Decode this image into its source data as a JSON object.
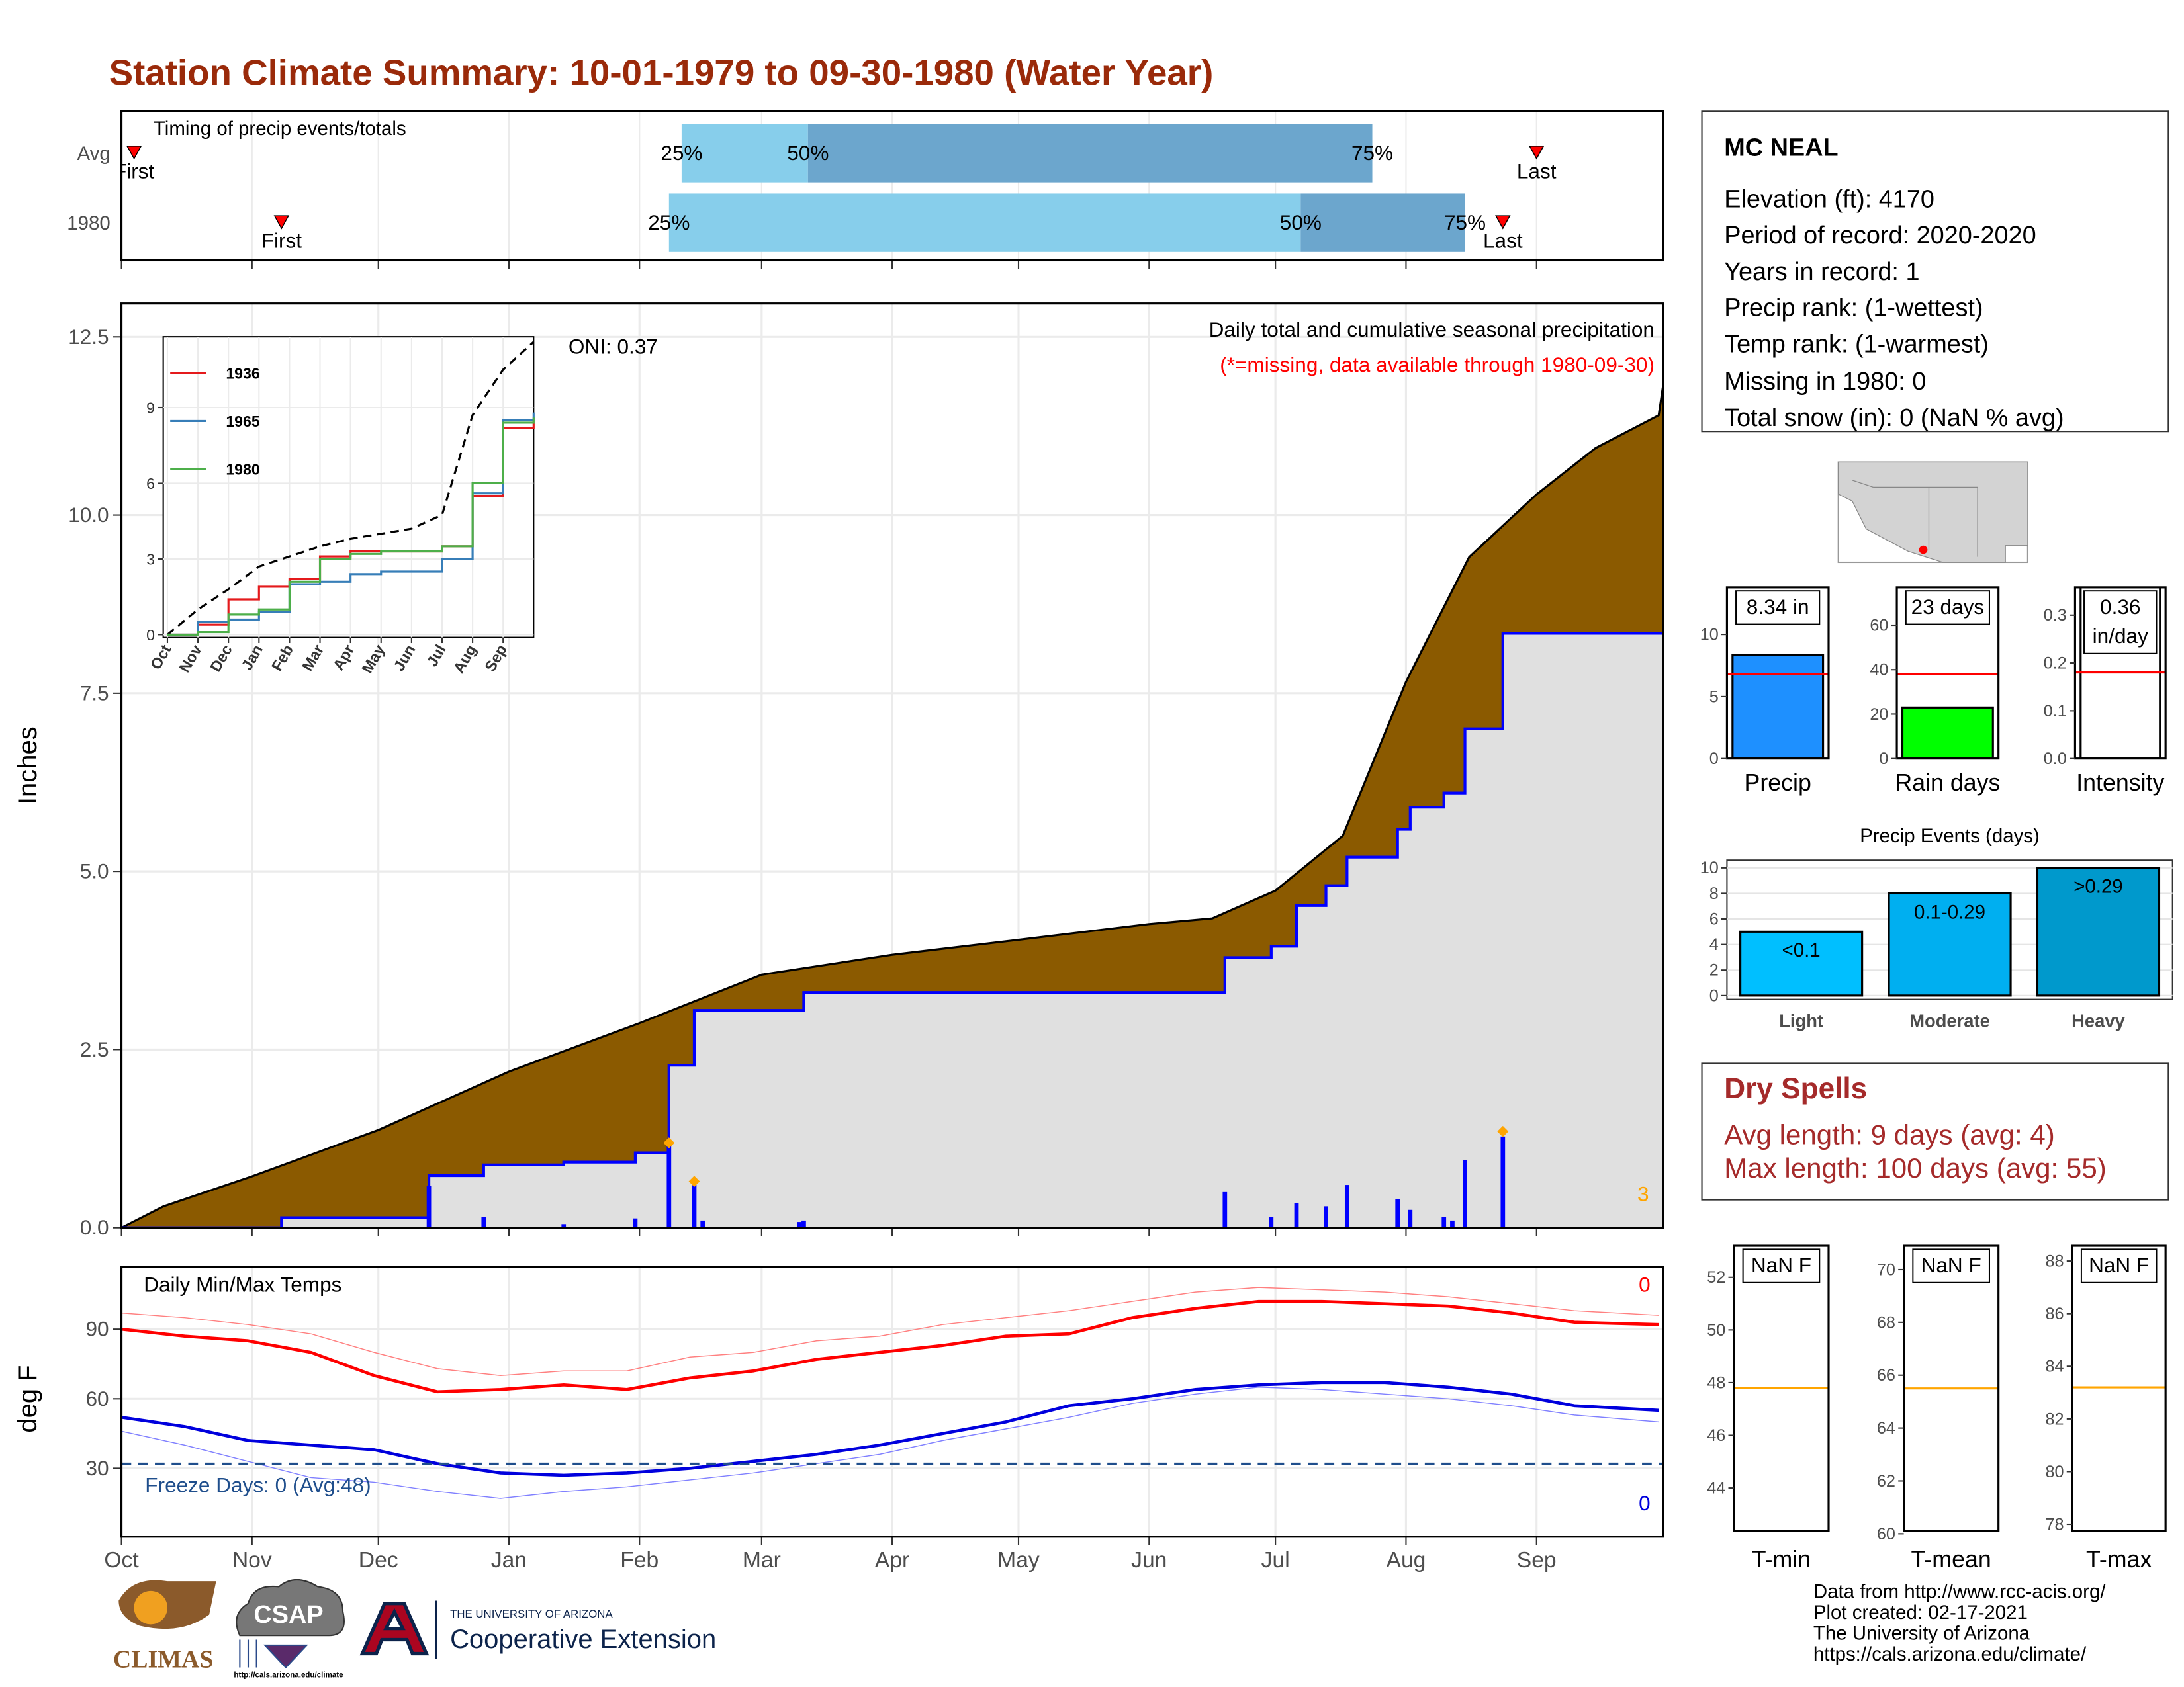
{
  "title": "Station Climate Summary: 10-01-1979 to 09-30-1980 (Water Year)",
  "station": {
    "name": "MC NEAL",
    "lines": [
      "Elevation (ft): 4170",
      "Period of record: 2020-2020",
      "Years in record: 1",
      "Precip rank:  (1-wettest)",
      "Temp rank:  (1-warmest)",
      "Missing in 1980: 0",
      "Total snow (in): 0 (NaN % avg)"
    ]
  },
  "dry_spells": {
    "title": "Dry Spells",
    "lines": [
      "Avg length: 9 days (avg: 4)",
      "Max length: 100 days (avg: 55)"
    ]
  },
  "footer": {
    "credits": [
      "Data from http://www.rcc-acis.org/",
      "Plot created: 02-17-2021",
      "The University of Arizona",
      "https://cals.arizona.edu/climate/"
    ],
    "logos": [
      "CLIMAS",
      "CSAP",
      "http://cals.arizona.edu/climate",
      "THE UNIVERSITY OF ARIZONA",
      "Cooperative Extension"
    ]
  },
  "chart_data": [
    {
      "type": "timing",
      "title": "Timing of precip events/totals",
      "xlim": [
        0,
        366
      ],
      "xticks": [
        0,
        31,
        61,
        92,
        123,
        152,
        183,
        213,
        244,
        274,
        305,
        336
      ],
      "first_label": "First",
      "last_label": "Last",
      "q_labels": [
        "25%",
        "50%",
        "75%"
      ],
      "colors": [
        "#87ceeb",
        "#6ca6cd"
      ],
      "marker_color": "#ff0000",
      "rows": [
        {
          "name": "Avg",
          "first": 3,
          "q25": 133,
          "q50": 163,
          "q75": 297,
          "last": 336
        },
        {
          "name": "1980",
          "first": 38,
          "q25": 130,
          "q50": 280,
          "q75": 319,
          "last": 328
        }
      ]
    },
    {
      "type": "area",
      "ylabel": "Inches",
      "annotations": [
        "ONI: 0.37",
        "Daily total and cumulative seasonal precipitation",
        "(*=missing, data available through 1980-09-30)"
      ],
      "note_value": 3,
      "xlim": [
        0,
        366
      ],
      "xticks": [
        0,
        31,
        61,
        92,
        123,
        152,
        183,
        213,
        244,
        274,
        305,
        336
      ],
      "ylim": [
        0,
        12.97
      ],
      "yticks": [
        {
          "value": 0,
          "label": "0.0"
        },
        2.5,
        {
          "value": 5,
          "label": "5.0"
        },
        7.5,
        {
          "value": 10,
          "label": "10.0"
        },
        12.5
      ],
      "grid": true,
      "normal": {
        "color": "#8b5a00",
        "x": [
          0,
          10,
          31,
          61,
          92,
          123,
          152,
          183,
          213,
          244,
          259,
          274,
          290,
          305,
          320,
          336,
          350,
          365,
          366
        ],
        "values": [
          0,
          0.3,
          0.72,
          1.37,
          2.19,
          2.87,
          3.55,
          3.83,
          4.04,
          4.26,
          4.34,
          4.73,
          5.5,
          7.66,
          9.41,
          10.29,
          10.94,
          11.4,
          11.8
        ]
      },
      "observed": {
        "color": "#0000ff",
        "fill": "#e0e0e0",
        "x": [
          0,
          38,
          73,
          86,
          105,
          122,
          130,
          136,
          162,
          262,
          273,
          279,
          286,
          291,
          303,
          306,
          314,
          319,
          328
        ],
        "values": [
          0,
          0.14,
          0.73,
          0.88,
          0.92,
          1.05,
          2.28,
          3.05,
          3.3,
          3.79,
          3.95,
          4.52,
          4.8,
          5.2,
          5.59,
          5.9,
          6.1,
          7.0,
          8.34
        ]
      },
      "daily": {
        "color": "#0000ff",
        "x": [
          73,
          86,
          105,
          122,
          130,
          136,
          138,
          161,
          162,
          262,
          273,
          279,
          286,
          291,
          303,
          306,
          314,
          316,
          319,
          328
        ],
        "values": [
          0.59,
          0.15,
          0.05,
          0.13,
          1.17,
          0.6,
          0.1,
          0.08,
          0.1,
          0.5,
          0.15,
          0.35,
          0.3,
          0.6,
          0.4,
          0.25,
          0.15,
          0.1,
          0.95,
          1.28
        ]
      },
      "flags": {
        "color": "#ffa500",
        "x": [
          130,
          136,
          328
        ],
        "values": [
          1.19,
          0.65,
          1.35
        ]
      }
    },
    {
      "type": "line",
      "xlim": [
        0,
        12
      ],
      "ylim": [
        0,
        11.8
      ],
      "yticks": [
        0,
        3,
        6,
        9
      ],
      "xticks": [
        {
          "value": 0,
          "label": "Oct"
        },
        {
          "value": 1,
          "label": "Nov"
        },
        {
          "value": 2,
          "label": "Dec"
        },
        {
          "value": 3,
          "label": "Jan"
        },
        {
          "value": 4,
          "label": "Feb"
        },
        {
          "value": 5,
          "label": "Mar"
        },
        {
          "value": 6,
          "label": "Apr"
        },
        {
          "value": 7,
          "label": "May"
        },
        {
          "value": 8,
          "label": "Jun"
        },
        {
          "value": 9,
          "label": "Jul"
        },
        {
          "value": 10,
          "label": "Aug"
        },
        {
          "value": 11,
          "label": "Sep"
        }
      ],
      "x": [
        0,
        1,
        2,
        3,
        4,
        5,
        6,
        7,
        8,
        9,
        10,
        11,
        12
      ],
      "series": [
        {
          "name": "1936",
          "color": "#e41a1c",
          "values": [
            0,
            0.4,
            1.4,
            1.9,
            2.2,
            3.1,
            3.3,
            3.3,
            3.3,
            3.5,
            5.5,
            8.2,
            8.5
          ]
        },
        {
          "name": "1965",
          "color": "#377eb8",
          "values": [
            0,
            0.5,
            0.6,
            0.9,
            2.0,
            2.1,
            2.4,
            2.5,
            2.5,
            3.0,
            5.6,
            8.5,
            8.8
          ]
        },
        {
          "name": "1980",
          "color": "#4daf4a",
          "values": [
            0,
            0.1,
            0.8,
            1.0,
            2.1,
            3.0,
            3.2,
            3.3,
            3.3,
            3.5,
            6.0,
            8.4,
            8.6
          ]
        }
      ],
      "average": {
        "color": "#000000",
        "dash": true,
        "values": [
          0,
          1.0,
          1.8,
          2.7,
          3.1,
          3.5,
          3.8,
          4.0,
          4.2,
          4.75,
          8.7,
          10.5,
          11.6
        ]
      }
    },
    {
      "type": "line",
      "title": "Daily Min/Max Temps",
      "ylabel": "deg F",
      "xlim": [
        0,
        366
      ],
      "ylim": [
        0.5,
        117
      ],
      "yticks": [
        30,
        60,
        90
      ],
      "grid": true,
      "xticks": [
        {
          "value": 0,
          "label": "Oct"
        },
        {
          "value": 31,
          "label": "Nov"
        },
        {
          "value": 61,
          "label": "Dec"
        },
        {
          "value": 92,
          "label": "Jan"
        },
        {
          "value": 123,
          "label": "Feb"
        },
        {
          "value": 152,
          "label": "Mar"
        },
        {
          "value": 183,
          "label": "Apr"
        },
        {
          "value": 213,
          "label": "May"
        },
        {
          "value": 244,
          "label": "Jun"
        },
        {
          "value": 274,
          "label": "Jul"
        },
        {
          "value": 305,
          "label": "Aug"
        },
        {
          "value": 336,
          "label": "Sep"
        }
      ],
      "x": [
        0,
        15,
        30,
        45,
        60,
        75,
        90,
        105,
        120,
        135,
        150,
        165,
        180,
        195,
        210,
        225,
        240,
        255,
        270,
        285,
        300,
        315,
        330,
        345,
        365
      ],
      "series": [
        {
          "color": "#ff8080",
          "width": 0.7,
          "values": [
            97,
            95,
            92,
            88,
            80,
            73,
            70,
            72,
            72,
            78,
            80,
            85,
            87,
            92,
            95,
            98,
            102,
            106,
            108,
            107,
            106,
            104,
            101,
            98,
            96
          ]
        },
        {
          "color": "#ff0000",
          "width": 2.2,
          "values": [
            90,
            87,
            85,
            80,
            70,
            63,
            64,
            66,
            64,
            69,
            72,
            77,
            80,
            83,
            87,
            88,
            95,
            99,
            102,
            102,
            101,
            100,
            97,
            93,
            92
          ]
        },
        {
          "color": "#8080ff",
          "width": 0.7,
          "values": [
            46,
            40,
            33,
            26,
            24,
            20,
            17,
            20,
            22,
            25,
            28,
            32,
            36,
            42,
            47,
            52,
            58,
            62,
            65,
            64,
            62,
            60,
            57,
            53,
            50
          ]
        },
        {
          "color": "#0000dd",
          "width": 2.2,
          "values": [
            52,
            48,
            42,
            40,
            38,
            32,
            28,
            27,
            28,
            30,
            33,
            36,
            40,
            45,
            50,
            57,
            60,
            64,
            66,
            67,
            67,
            65,
            62,
            57,
            55
          ]
        }
      ],
      "freeze": 32,
      "freeze_color": "#1f4e8c",
      "freeze_label": "Freeze Days: 0 (Avg:48)",
      "max_count": 0,
      "min_count": 0
    },
    {
      "type": "bar",
      "xlabel": "Precip",
      "values": [
        8.34
      ],
      "value_labels": [
        "8.34 in"
      ],
      "color": "#1e90ff",
      "reference": 6.8,
      "ylim": [
        0,
        13.8
      ],
      "yticks": [
        0,
        5,
        10
      ]
    },
    {
      "type": "bar",
      "xlabel": "Rain days",
      "values": [
        23
      ],
      "value_labels": [
        "23 days"
      ],
      "color": "#00ff00",
      "reference": 38,
      "ylim": [
        0,
        77
      ],
      "yticks": [
        0,
        20,
        40,
        60
      ]
    },
    {
      "type": "bar",
      "xlabel": "Intensity",
      "values": [
        0.36
      ],
      "value_labels": [
        "0.36 in/day"
      ],
      "color": "#ffffff",
      "reference": 0.18,
      "ylim": [
        0,
        0.358
      ],
      "yticks": [
        {
          "value": 0,
          "label": "0.0"
        },
        0.1,
        0.2,
        0.3
      ]
    },
    {
      "type": "bar",
      "title": "Precip Events (days)",
      "categories": [
        "Light",
        "Moderate",
        "Heavy"
      ],
      "values": [
        5,
        8,
        10
      ],
      "value_labels": [
        "<0.1",
        "0.1-0.29",
        ">0.29"
      ],
      "colors": [
        "#00bfff",
        "#00aff0",
        "#0099cc"
      ],
      "ylim": [
        -0.3,
        10.6
      ],
      "yticks": [
        0,
        2,
        4,
        6,
        8,
        10
      ],
      "grid": true
    },
    {
      "type": "reference",
      "xlabel": "T-min",
      "label": "NaN F",
      "reference": 47.8,
      "color": "#ffa500",
      "ylim": [
        42.36,
        53.2
      ],
      "yticks": [
        44,
        46,
        48,
        50,
        52
      ]
    },
    {
      "type": "reference",
      "xlabel": "T-mean",
      "label": "NaN F",
      "reference": 65.5,
      "color": "#ffa500",
      "ylim": [
        60.1,
        70.9
      ],
      "yticks": [
        60,
        62,
        64,
        66,
        68,
        70
      ]
    },
    {
      "type": "reference",
      "xlabel": "T-max",
      "label": "NaN F",
      "reference": 83.2,
      "color": "#ffa500",
      "ylim": [
        77.74,
        88.58
      ],
      "yticks": [
        78,
        80,
        82,
        84,
        86,
        88
      ]
    }
  ]
}
